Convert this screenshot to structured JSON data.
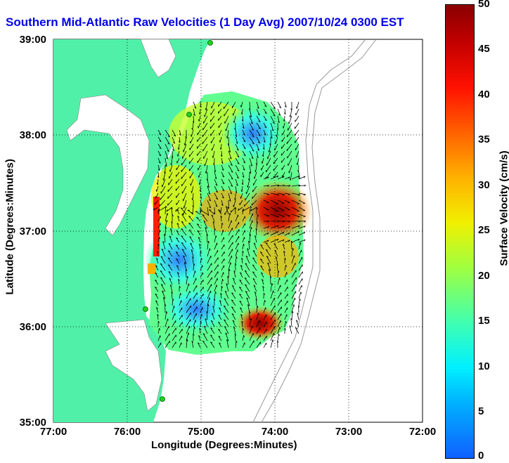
{
  "title": "Southern Mid-Atlantic Raw Velocities (1 Day Avg) 2007/10/24 0300 EST",
  "x_axis": {
    "title": "Longitude (Degrees:Minutes)",
    "ticks": [
      "77:00",
      "76:00",
      "75:00",
      "74:00",
      "73:00",
      "72:00"
    ]
  },
  "y_axis": {
    "title": "Latitude (Degrees:Minutes)",
    "ticks": [
      "39:00",
      "38:00",
      "37:00",
      "36:00",
      "35:00"
    ]
  },
  "colorbar": {
    "label": "Surface Velocity (cm/s)",
    "ticks": [
      "50",
      "45",
      "40",
      "35",
      "30",
      "25",
      "20",
      "15",
      "10",
      "5",
      "0"
    ],
    "range_cm_s": [
      0,
      50
    ]
  },
  "colors": {
    "land": "#50f0a8",
    "title": "#0000e6",
    "station": "#20d020",
    "grid": "#000000"
  }
}
